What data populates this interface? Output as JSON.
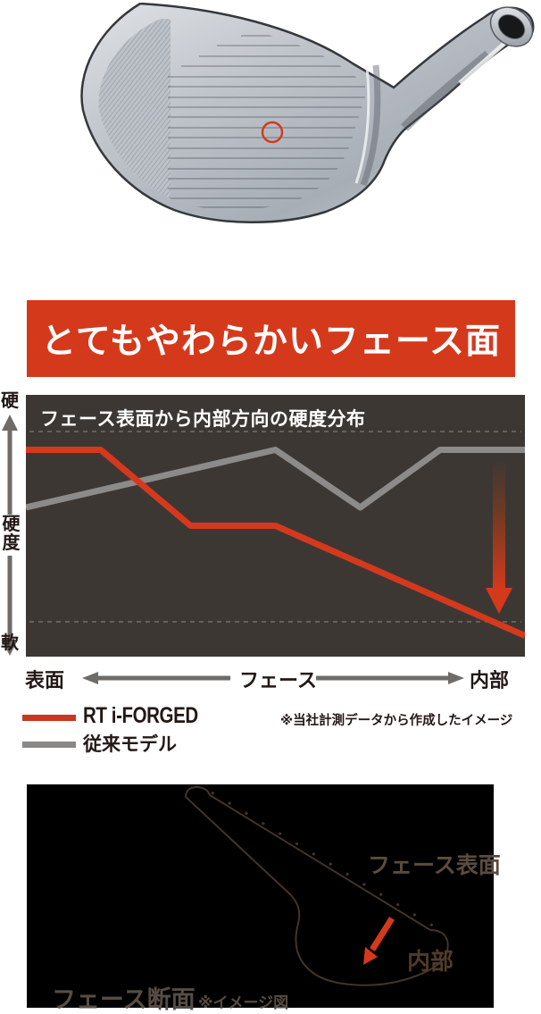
{
  "colors": {
    "accent_red": "#d5391c",
    "legend_red": "#c8391f",
    "legend_gray": "#8a8887",
    "chart_bg": "#3d3734",
    "diagram_bg": "#000000"
  },
  "banner": {
    "label": "とてもやわらかいフェース面"
  },
  "chart": {
    "title": "フェース表面から内部方向の硬度分布",
    "y_axis": {
      "hard": "硬",
      "label": "硬度",
      "soft": "軟"
    },
    "x_axis": {
      "left": "表面",
      "center": "フェース",
      "right": "内部"
    },
    "legend": [
      {
        "label": "RT i-FORGED",
        "color": "#c8391f"
      },
      {
        "label": "従来モデル",
        "color": "#8a8887"
      }
    ],
    "note": "※当社計測データから作成したイメージ"
  },
  "chart_data": {
    "type": "line",
    "title": "フェース表面から内部方向の硬度分布",
    "xlabel": "フェース位置 (表面 0 → 内部 1)",
    "ylabel": "硬度 (軟 0 → 硬 1)",
    "x_range": [
      0,
      1
    ],
    "y_range": [
      0,
      1
    ],
    "guides_y": [
      0.86,
      0.133
    ],
    "legend_position": "below-left",
    "series": [
      {
        "name": "RT i-FORGED",
        "color": "#d5391c",
        "x": [
          0,
          0.15,
          0.33,
          0.5,
          1.0
        ],
        "y": [
          0.79,
          0.79,
          0.5,
          0.5,
          0.08
        ]
      },
      {
        "name": "従来モデル",
        "color": "#8d8b8a",
        "x": [
          0,
          0.5,
          0.67,
          0.83,
          1.0
        ],
        "y": [
          0.57,
          0.79,
          0.57,
          0.79,
          0.79
        ]
      }
    ],
    "annotation": "内部側で硬度が大きく低下することを示す下向きグラデーション矢印"
  },
  "diagram": {
    "face_surface_label": "フェース表面",
    "interior_label": "内部",
    "caption": "フェース断面",
    "note": "※イメージ図"
  }
}
